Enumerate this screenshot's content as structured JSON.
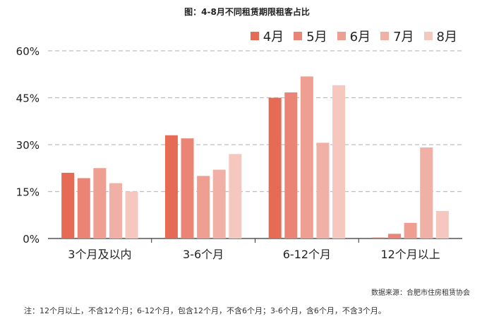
{
  "title": "图：4-8月不同租赁期限租客占比",
  "source": "数据来源：合肥市住房租赁协会",
  "note": "注：12个月以上，不含12个月；6-12个月，包含12个月，不含6个月；3-6个月，含6个月，不含3个月。",
  "chart_data": {
    "type": "bar",
    "categories": [
      "3个月及以内",
      "3-6个月",
      "6-12个月",
      "12个月以上"
    ],
    "series": [
      {
        "name": "4月",
        "color": "#e56b55",
        "values": [
          21,
          33,
          45,
          0.3
        ]
      },
      {
        "name": "5月",
        "color": "#ea8575",
        "values": [
          19.3,
          32,
          46.7,
          1.5
        ]
      },
      {
        "name": "6月",
        "color": "#ee9f91",
        "values": [
          22.5,
          20,
          51.8,
          5
        ]
      },
      {
        "name": "7月",
        "color": "#f1b0a5",
        "values": [
          17.7,
          22,
          30.6,
          29.1
        ]
      },
      {
        "name": "8月",
        "color": "#f5c7be",
        "values": [
          15,
          27,
          49,
          8.8
        ]
      }
    ],
    "yticks": [
      "0%",
      "15%",
      "30%",
      "45%",
      "60%"
    ],
    "ylim": [
      0,
      60
    ],
    "grid": true,
    "legend": "top-right"
  }
}
